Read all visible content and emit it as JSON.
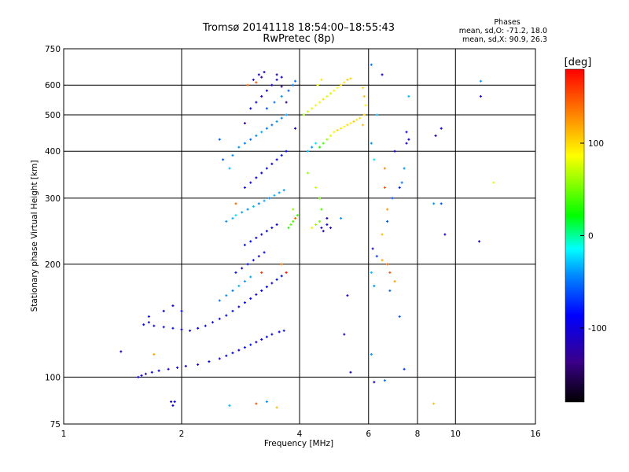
{
  "chart_data": {
    "type": "scatter",
    "title": "Tromsø 20141118 18:54:00–18:55:43",
    "subtitle": "RwPretec (8p)",
    "stats": {
      "title": "Phases",
      "line_o": "mean, sd,O: -71.2, 18.0",
      "line_x": "mean, sd,X:  90.9, 26.3"
    },
    "xlabel": "Frequency [MHz]",
    "ylabel": "Stationary phase Virtual Height [km]",
    "x_scale": "log",
    "y_scale": "log",
    "xlim": [
      1,
      16
    ],
    "ylim": [
      75,
      750
    ],
    "x_ticks": [
      1,
      2,
      4,
      6,
      8,
      10,
      16
    ],
    "x_tick_labels": [
      "1",
      "2",
      "4",
      "6",
      "8",
      "10",
      "16"
    ],
    "y_ticks": [
      75,
      100,
      200,
      300,
      400,
      500,
      600,
      750
    ],
    "y_tick_labels": [
      "75",
      "100",
      "200",
      "300",
      "400",
      "500",
      "600",
      "750"
    ],
    "grid": true,
    "colorbar": {
      "title": "[deg]",
      "range": [
        -180,
        180
      ],
      "ticks": [
        100,
        0,
        -100
      ],
      "tick_labels": [
        "100",
        "0",
        "-100"
      ]
    },
    "series": [
      {
        "label": "",
        "points": [
          [
            1.55,
            100,
            -100
          ],
          [
            1.58,
            101,
            -95
          ],
          [
            1.62,
            102,
            -110
          ],
          [
            1.68,
            103,
            -100
          ],
          [
            1.75,
            104,
            -90
          ],
          [
            1.85,
            105,
            -105
          ],
          [
            1.95,
            106,
            -95
          ],
          [
            2.05,
            107,
            -100
          ],
          [
            2.2,
            108,
            -110
          ],
          [
            2.35,
            110,
            -90
          ],
          [
            2.5,
            112,
            -100
          ],
          [
            2.6,
            114,
            -95
          ],
          [
            2.7,
            116,
            -85
          ],
          [
            2.8,
            118,
            -100
          ],
          [
            2.9,
            120,
            -90
          ],
          [
            3.0,
            122,
            -80
          ],
          [
            3.1,
            124,
            -95
          ],
          [
            3.2,
            126,
            -100
          ],
          [
            3.3,
            128,
            -85
          ],
          [
            3.4,
            130,
            -90
          ],
          [
            3.55,
            132,
            -100
          ],
          [
            3.65,
            133,
            -80
          ],
          [
            1.6,
            138,
            -90
          ],
          [
            1.65,
            140,
            -100
          ],
          [
            1.7,
            137,
            -85
          ],
          [
            1.8,
            136,
            -95
          ],
          [
            1.9,
            135,
            -80
          ],
          [
            2.0,
            134,
            -100
          ],
          [
            2.1,
            133,
            -90
          ],
          [
            2.2,
            135,
            -85
          ],
          [
            2.3,
            137,
            -95
          ],
          [
            2.4,
            140,
            -100
          ],
          [
            2.5,
            143,
            -90
          ],
          [
            2.6,
            146,
            -85
          ],
          [
            2.7,
            150,
            -80
          ],
          [
            2.8,
            154,
            -95
          ],
          [
            2.9,
            158,
            -90
          ],
          [
            3.0,
            162,
            -85
          ],
          [
            3.1,
            166,
            -100
          ],
          [
            3.2,
            170,
            -90
          ],
          [
            3.3,
            174,
            -85
          ],
          [
            3.4,
            178,
            -95
          ],
          [
            3.5,
            182,
            -80
          ],
          [
            3.6,
            186,
            -90
          ],
          [
            1.65,
            145,
            -95
          ],
          [
            1.8,
            150,
            -90
          ],
          [
            1.9,
            155,
            -100
          ],
          [
            2.0,
            150,
            -85
          ],
          [
            2.5,
            160,
            -50
          ],
          [
            2.6,
            165,
            -40
          ],
          [
            2.7,
            170,
            -45
          ],
          [
            2.8,
            175,
            -30
          ],
          [
            2.9,
            180,
            -40
          ],
          [
            3.0,
            185,
            -35
          ],
          [
            2.75,
            190,
            -80
          ],
          [
            2.85,
            195,
            -90
          ],
          [
            2.95,
            200,
            -85
          ],
          [
            3.05,
            205,
            -95
          ],
          [
            3.15,
            210,
            -100
          ],
          [
            3.25,
            215,
            -90
          ],
          [
            2.9,
            225,
            -90
          ],
          [
            3.0,
            230,
            -85
          ],
          [
            3.1,
            235,
            -95
          ],
          [
            3.2,
            240,
            -100
          ],
          [
            3.3,
            245,
            -90
          ],
          [
            3.4,
            250,
            -85
          ],
          [
            3.5,
            255,
            -95
          ],
          [
            2.6,
            260,
            -40
          ],
          [
            2.7,
            265,
            -30
          ],
          [
            2.75,
            270,
            -20
          ],
          [
            2.85,
            275,
            -35
          ],
          [
            2.95,
            280,
            -40
          ],
          [
            3.05,
            285,
            -30
          ],
          [
            3.15,
            290,
            -45
          ],
          [
            3.25,
            295,
            -35
          ],
          [
            3.35,
            300,
            -40
          ],
          [
            3.45,
            305,
            -30
          ],
          [
            3.55,
            310,
            -35
          ],
          [
            3.65,
            315,
            -40
          ],
          [
            2.9,
            320,
            -100
          ],
          [
            3.0,
            330,
            -95
          ],
          [
            3.1,
            340,
            -90
          ],
          [
            3.2,
            350,
            -100
          ],
          [
            3.3,
            360,
            -85
          ],
          [
            3.4,
            370,
            -95
          ],
          [
            3.5,
            380,
            -90
          ],
          [
            3.6,
            390,
            -80
          ],
          [
            3.7,
            400,
            -85
          ],
          [
            2.8,
            410,
            -40
          ],
          [
            2.9,
            420,
            -45
          ],
          [
            3.0,
            430,
            -50
          ],
          [
            3.1,
            440,
            -40
          ],
          [
            3.2,
            450,
            -35
          ],
          [
            3.3,
            460,
            -45
          ],
          [
            3.4,
            470,
            -50
          ],
          [
            3.5,
            480,
            -40
          ],
          [
            3.6,
            490,
            -45
          ],
          [
            3.7,
            500,
            -35
          ],
          [
            3.0,
            520,
            -100
          ],
          [
            3.1,
            540,
            -95
          ],
          [
            3.2,
            560,
            -105
          ],
          [
            3.3,
            580,
            -100
          ],
          [
            3.4,
            600,
            -110
          ],
          [
            3.5,
            620,
            -100
          ],
          [
            3.6,
            630,
            -95
          ],
          [
            3.15,
            640,
            -100
          ],
          [
            3.25,
            650,
            -105
          ],
          [
            3.05,
            620,
            -110
          ],
          [
            3.3,
            520,
            -60
          ],
          [
            3.45,
            540,
            -50
          ],
          [
            3.6,
            560,
            -40
          ],
          [
            3.75,
            580,
            -55
          ],
          [
            3.85,
            600,
            -45
          ],
          [
            3.9,
            615,
            -50
          ],
          [
            3.75,
            250,
            30
          ],
          [
            3.8,
            255,
            45
          ],
          [
            3.85,
            260,
            40
          ],
          [
            3.9,
            265,
            50
          ],
          [
            3.95,
            270,
            35
          ],
          [
            3.85,
            280,
            60
          ],
          [
            4.3,
            250,
            80
          ],
          [
            4.4,
            255,
            60
          ],
          [
            4.5,
            260,
            50
          ],
          [
            4.55,
            250,
            -110
          ],
          [
            4.6,
            245,
            -120
          ],
          [
            4.7,
            255,
            -100
          ],
          [
            4.8,
            250,
            -115
          ],
          [
            4.7,
            265,
            -110
          ],
          [
            4.2,
            400,
            -30
          ],
          [
            4.3,
            410,
            -40
          ],
          [
            4.4,
            420,
            -20
          ],
          [
            4.5,
            410,
            30
          ],
          [
            4.6,
            420,
            40
          ],
          [
            4.7,
            430,
            60
          ],
          [
            4.8,
            440,
            80
          ],
          [
            4.9,
            450,
            90
          ],
          [
            5.0,
            455,
            100
          ],
          [
            5.1,
            460,
            95
          ],
          [
            5.2,
            465,
            85
          ],
          [
            5.3,
            470,
            100
          ],
          [
            5.4,
            475,
            90
          ],
          [
            5.5,
            480,
            105
          ],
          [
            5.6,
            485,
            95
          ],
          [
            5.7,
            490,
            100
          ],
          [
            5.8,
            470,
            110
          ],
          [
            5.85,
            500,
            100
          ],
          [
            5.9,
            530,
            90
          ],
          [
            5.85,
            560,
            110
          ],
          [
            5.8,
            590,
            100
          ],
          [
            4.1,
            500,
            60
          ],
          [
            4.2,
            510,
            70
          ],
          [
            4.3,
            520,
            80
          ],
          [
            4.4,
            530,
            90
          ],
          [
            4.5,
            540,
            85
          ],
          [
            4.6,
            550,
            95
          ],
          [
            4.7,
            560,
            80
          ],
          [
            4.8,
            570,
            75
          ],
          [
            4.9,
            580,
            90
          ],
          [
            5.0,
            590,
            85
          ],
          [
            5.1,
            600,
            100
          ],
          [
            5.2,
            610,
            95
          ],
          [
            5.3,
            620,
            105
          ],
          [
            5.4,
            625,
            100
          ],
          [
            4.45,
            600,
            85
          ],
          [
            4.55,
            620,
            95
          ],
          [
            4.2,
            350,
            60
          ],
          [
            4.4,
            320,
            70
          ],
          [
            4.5,
            300,
            50
          ],
          [
            4.55,
            280,
            40
          ],
          [
            6.1,
            680,
            -50
          ],
          [
            6.1,
            420,
            -40
          ],
          [
            6.3,
            500,
            -30
          ],
          [
            6.2,
            380,
            -20
          ],
          [
            6.5,
            640,
            -100
          ],
          [
            6.6,
            360,
            130
          ],
          [
            6.6,
            320,
            150
          ],
          [
            6.7,
            280,
            120
          ],
          [
            6.5,
            240,
            110
          ],
          [
            6.9,
            300,
            -60
          ],
          [
            7.2,
            320,
            -80
          ],
          [
            7.3,
            330,
            -50
          ],
          [
            7.4,
            360,
            -40
          ],
          [
            7.5,
            420,
            -110
          ],
          [
            7.6,
            430,
            -100
          ],
          [
            7.5,
            450,
            -90
          ],
          [
            7.6,
            560,
            -30
          ],
          [
            8.9,
            440,
            -110
          ],
          [
            9.2,
            460,
            -100
          ],
          [
            8.8,
            290,
            -40
          ],
          [
            9.2,
            290,
            -60
          ],
          [
            9.4,
            240,
            -100
          ],
          [
            11.6,
            560,
            -110
          ],
          [
            11.6,
            615,
            -40
          ],
          [
            12.5,
            330,
            80
          ],
          [
            11.5,
            230,
            -110
          ],
          [
            6.15,
            220,
            -100
          ],
          [
            6.3,
            210,
            -70
          ],
          [
            6.5,
            205,
            120
          ],
          [
            6.7,
            200,
            140
          ],
          [
            6.1,
            190,
            -30
          ],
          [
            6.2,
            175,
            -40
          ],
          [
            6.8,
            190,
            150
          ],
          [
            6.8,
            170,
            -50
          ],
          [
            7.0,
            180,
            120
          ],
          [
            7.2,
            145,
            -60
          ],
          [
            7.4,
            105,
            -70
          ],
          [
            7.0,
            400,
            -100
          ],
          [
            6.7,
            260,
            -60
          ],
          [
            5.2,
            130,
            -110
          ],
          [
            5.3,
            165,
            -100
          ],
          [
            5.4,
            103,
            -110
          ],
          [
            5.1,
            265,
            -40
          ],
          [
            6.2,
            97,
            -100
          ],
          [
            6.6,
            98,
            -50
          ],
          [
            6.1,
            115,
            -40
          ],
          [
            1.4,
            117,
            -110
          ],
          [
            1.7,
            115,
            120
          ],
          [
            1.88,
            86,
            -120
          ],
          [
            1.9,
            84,
            -100
          ],
          [
            1.92,
            86,
            -95
          ],
          [
            2.65,
            84,
            -30
          ],
          [
            3.1,
            85,
            150
          ],
          [
            3.3,
            86,
            -40
          ],
          [
            3.5,
            83,
            110
          ],
          [
            8.8,
            85,
            110
          ],
          [
            3.2,
            190,
            160
          ],
          [
            3.7,
            190,
            170
          ],
          [
            3.9,
            265,
            140
          ],
          [
            3.6,
            200,
            130
          ],
          [
            2.75,
            290,
            140
          ],
          [
            2.55,
            380,
            -60
          ],
          [
            2.7,
            390,
            -40
          ],
          [
            2.65,
            360,
            -30
          ],
          [
            2.5,
            430,
            -55
          ],
          [
            2.95,
            600,
            140
          ],
          [
            3.1,
            610,
            150
          ],
          [
            3.2,
            630,
            -130
          ],
          [
            3.5,
            640,
            -120
          ],
          [
            3.6,
            595,
            -130
          ],
          [
            3.7,
            540,
            -140
          ],
          [
            3.9,
            460,
            -120
          ],
          [
            2.9,
            475,
            -130
          ]
        ]
      }
    ]
  }
}
